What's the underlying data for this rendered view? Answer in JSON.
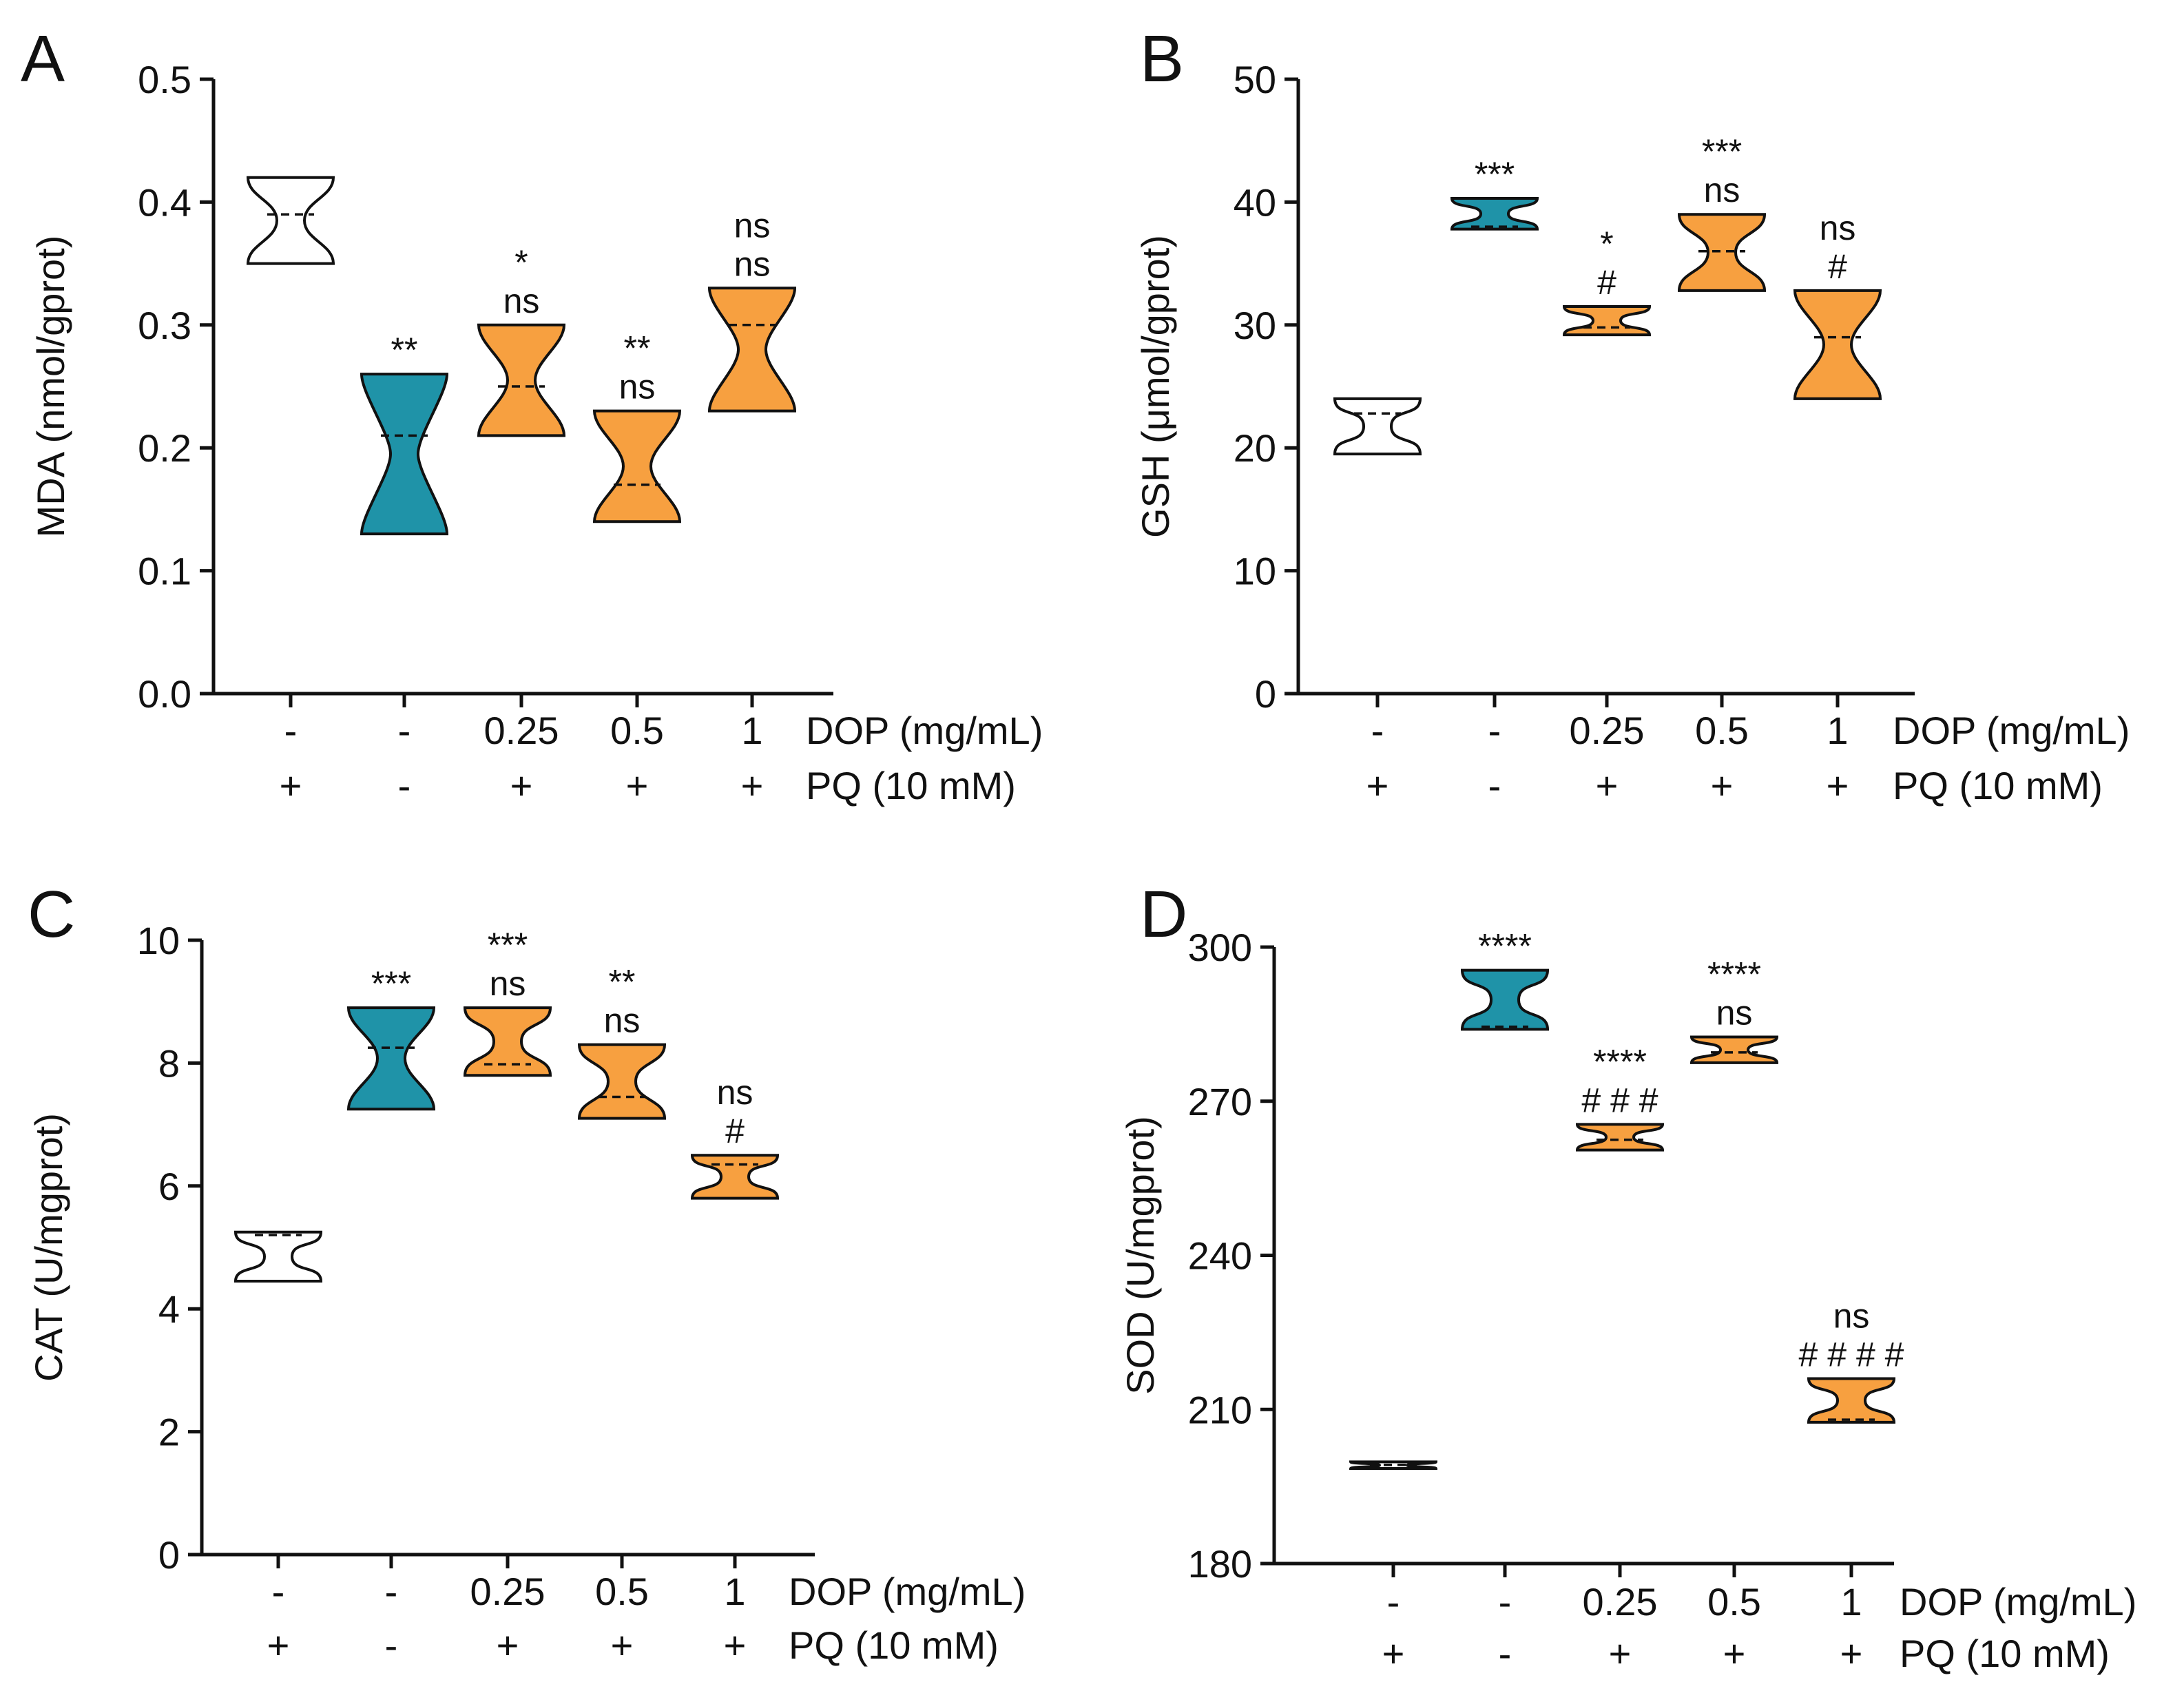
{
  "colors": {
    "control": "#ffffff",
    "pq_only": "#1f93a8",
    "dop": "#f7a040",
    "stroke": "#111111"
  },
  "row_labels": [
    "DOP (mg/mL)",
    "PQ (10 mM)"
  ],
  "groups": [
    {
      "dop": "-",
      "pq": "+",
      "color_key": "control"
    },
    {
      "dop": "-",
      "pq": "-",
      "color_key": "pq_only"
    },
    {
      "dop": "0.25",
      "pq": "+",
      "color_key": "dop"
    },
    {
      "dop": "0.5",
      "pq": "+",
      "color_key": "dop"
    },
    {
      "dop": "1",
      "pq": "+",
      "color_key": "dop"
    }
  ],
  "chart_data": [
    {
      "panel": "A",
      "type": "violin",
      "ylabel": "MDA (nmol/gprot)",
      "ylim": [
        0,
        0.5
      ],
      "yticks": [
        "0.0",
        "0.1",
        "0.2",
        "0.3",
        "0.4",
        "0.5"
      ],
      "ytick_values": [
        0,
        0.1,
        0.2,
        0.3,
        0.4,
        0.5
      ],
      "series": [
        {
          "min": 0.35,
          "max": 0.42,
          "median": 0.39,
          "sig": []
        },
        {
          "min": 0.13,
          "max": 0.26,
          "median": 0.21,
          "sig": [
            "**"
          ]
        },
        {
          "min": 0.21,
          "max": 0.3,
          "median": 0.25,
          "sig": [
            "*",
            "ns"
          ]
        },
        {
          "min": 0.14,
          "max": 0.23,
          "median": 0.17,
          "sig": [
            "**",
            "ns"
          ]
        },
        {
          "min": 0.23,
          "max": 0.33,
          "median": 0.3,
          "sig": [
            "ns",
            "ns"
          ]
        }
      ]
    },
    {
      "panel": "B",
      "type": "violin",
      "ylabel": "GSH (μmol/gprot)",
      "ylim": [
        0,
        50
      ],
      "yticks": [
        "0",
        "10",
        "20",
        "30",
        "40",
        "50"
      ],
      "ytick_values": [
        0,
        10,
        20,
        30,
        40,
        50
      ],
      "series": [
        {
          "min": 19.5,
          "max": 24.0,
          "median": 22.8,
          "sig": []
        },
        {
          "min": 37.8,
          "max": 40.3,
          "median": 38.0,
          "sig": [
            "***"
          ]
        },
        {
          "min": 29.2,
          "max": 31.5,
          "median": 29.8,
          "sig": [
            "*",
            "#"
          ]
        },
        {
          "min": 32.8,
          "max": 39.0,
          "median": 36.0,
          "sig": [
            "***",
            "ns"
          ]
        },
        {
          "min": 24.0,
          "max": 32.8,
          "median": 29.0,
          "sig": [
            "ns",
            "#"
          ]
        }
      ]
    },
    {
      "panel": "C",
      "type": "violin",
      "ylabel": "CAT (U/mgprot)",
      "ylim": [
        0,
        10
      ],
      "yticks": [
        "0",
        "2",
        "4",
        "6",
        "8",
        "10"
      ],
      "ytick_values": [
        0,
        2,
        4,
        6,
        8,
        10
      ],
      "series": [
        {
          "min": 4.45,
          "max": 5.25,
          "median": 5.2,
          "sig": []
        },
        {
          "min": 7.25,
          "max": 8.9,
          "median": 8.25,
          "sig": [
            "***"
          ]
        },
        {
          "min": 7.8,
          "max": 8.9,
          "median": 7.98,
          "sig": [
            "***",
            "ns"
          ]
        },
        {
          "min": 7.1,
          "max": 8.3,
          "median": 7.45,
          "sig": [
            "**",
            "ns"
          ]
        },
        {
          "min": 5.8,
          "max": 6.5,
          "median": 6.35,
          "sig": [
            "ns",
            "#"
          ]
        }
      ]
    },
    {
      "panel": "D",
      "type": "violin",
      "ylabel": "SOD (U/mgprot)",
      "ylim": [
        180,
        300
      ],
      "yticks": [
        "180",
        "210",
        "240",
        "270",
        "300"
      ],
      "ytick_values": [
        180,
        210,
        240,
        270,
        300
      ],
      "series": [
        {
          "min": 198.5,
          "max": 199.8,
          "median": 199.2,
          "sig": []
        },
        {
          "min": 284.0,
          "max": 295.5,
          "median": 284.5,
          "sig": [
            "****"
          ]
        },
        {
          "min": 260.5,
          "max": 265.5,
          "median": 262.5,
          "sig": [
            "****",
            "# # #"
          ]
        },
        {
          "min": 277.5,
          "max": 282.5,
          "median": 279.5,
          "sig": [
            "****",
            "ns"
          ]
        },
        {
          "min": 207.5,
          "max": 216.0,
          "median": 208.0,
          "sig": [
            "ns",
            "# # # #"
          ]
        }
      ]
    }
  ]
}
